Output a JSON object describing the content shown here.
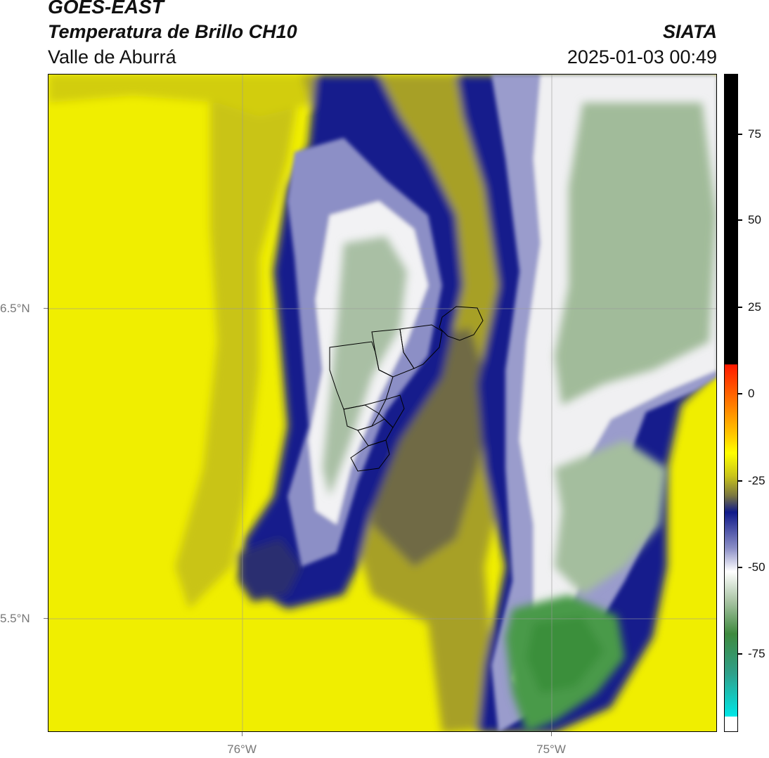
{
  "header": {
    "satellite": "GOES-EAST",
    "product": "Temperatura de Brillo CH10",
    "region": "Valle de Aburrá",
    "organization": "SIATA",
    "timestamp": "2025-01-03 00:49"
  },
  "map": {
    "latitude_labels": [
      "6.5°N",
      "5.5°N"
    ],
    "longitude_labels": [
      "76°W",
      "75°W"
    ],
    "gridlines": true
  },
  "colorbar": {
    "ticks": [
      "75",
      "50",
      "25",
      "0",
      "-25",
      "-50",
      "-75"
    ],
    "colors": {
      "black": "#000000",
      "red": "#ff1a00",
      "orange": "#ff9900",
      "yellow": "#ffff00",
      "olive": "#8a8a2e",
      "navy": "#101a8a",
      "white": "#ffffff",
      "green": "#3e8a3e",
      "cyan": "#00e6e6"
    }
  }
}
